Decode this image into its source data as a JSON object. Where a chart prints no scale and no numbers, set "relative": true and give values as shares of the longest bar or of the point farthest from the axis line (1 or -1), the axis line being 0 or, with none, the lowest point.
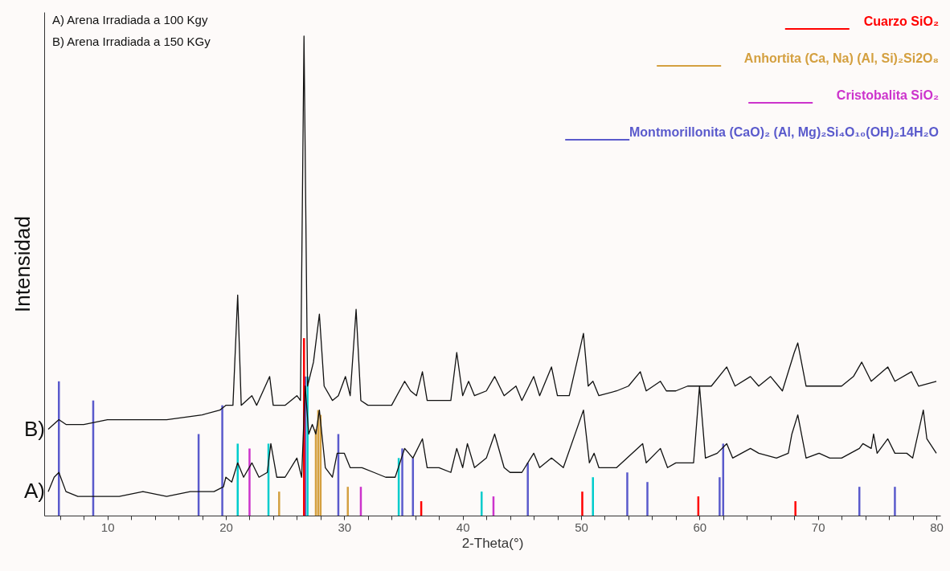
{
  "chart_data": {
    "type": "line",
    "relative": true,
    "xlabel": "2-Theta(°)",
    "ylabel": "Intensidad",
    "xlim": [
      5,
      80
    ],
    "xticks": [
      {
        "value": 6,
        "label": null
      },
      {
        "value": 8,
        "label": null
      },
      10,
      {
        "value": 12,
        "label": null
      },
      {
        "value": 14,
        "label": null
      },
      {
        "value": 16,
        "label": null
      },
      {
        "value": 18,
        "label": null
      },
      20,
      {
        "value": 22,
        "label": null
      },
      {
        "value": 24,
        "label": null
      },
      {
        "value": 26,
        "label": null
      },
      {
        "value": 28,
        "label": null
      },
      30,
      {
        "value": 32,
        "label": null
      },
      {
        "value": 34,
        "label": null
      },
      {
        "value": 36,
        "label": null
      },
      {
        "value": 38,
        "label": null
      },
      40,
      {
        "value": 42,
        "label": null
      },
      {
        "value": 44,
        "label": null
      },
      {
        "value": 46,
        "label": null
      },
      {
        "value": 48,
        "label": null
      },
      50,
      {
        "value": 52,
        "label": null
      },
      {
        "value": 54,
        "label": null
      },
      {
        "value": 56,
        "label": null
      },
      {
        "value": 58,
        "label": null
      },
      60,
      {
        "value": 62,
        "label": null
      },
      {
        "value": 64,
        "label": null
      },
      {
        "value": 66,
        "label": null
      },
      {
        "value": 68,
        "label": null
      },
      70,
      {
        "value": 72,
        "label": null
      },
      {
        "value": 74,
        "label": null
      },
      {
        "value": 76,
        "label": null
      },
      {
        "value": 78,
        "label": null
      },
      80
    ],
    "tick_labels": "x",
    "grid": false,
    "legend": "top right",
    "marker": "none",
    "line_style": "solid",
    "annotations": [
      "A)     Arena Irradiada a 100 Kgy",
      "B)     Arena Irradiada a 150 KGy",
      {
        "text": "B)",
        "x": 5,
        "y": 0.18
      },
      {
        "text": "A)",
        "x": 5,
        "y": 0.05
      }
    ],
    "series": [
      {
        "type": "bar",
        "name": "Montmorillonita (CaO)₂ (Al, Mg)₂Si₄O₁₀(OH)₂14H₂O",
        "color": "#5a5acc",
        "x": [
          5.9,
          8.8,
          17.7,
          19.7,
          26.7,
          29.5,
          34.9,
          35.8,
          45.5,
          53.9,
          55.6,
          61.7,
          62.0,
          73.5,
          76.5
        ],
        "values": [
          0.28,
          0.24,
          0.17,
          0.23,
          0.29,
          0.17,
          0.14,
          0.12,
          0.11,
          0.09,
          0.07,
          0.08,
          0.15,
          0.06,
          0.06
        ]
      },
      {
        "type": "bar",
        "name": "Cuarzo  SiO₂",
        "color": "#ff0000",
        "x": [
          26.6,
          36.5,
          50.1,
          59.9,
          68.1
        ],
        "values": [
          0.37,
          0.03,
          0.05,
          0.04,
          0.03
        ]
      },
      {
        "type": "bar",
        "name": "Anhortita (Ca, Na) (Al, Si)₂Si2O₈",
        "color": "#d4a040",
        "x": [
          24.5,
          27.6,
          27.8,
          28.0,
          30.3
        ],
        "values": [
          0.05,
          0.18,
          0.22,
          0.21,
          0.06
        ]
      },
      {
        "type": "bar",
        "name": "Cristobalita  SiO₂",
        "color": "#cc33cc",
        "x": [
          22.0,
          31.4,
          42.6
        ],
        "values": [
          0.14,
          0.06,
          0.04
        ]
      },
      {
        "type": "bar",
        "color": "#00cccc",
        "x": [
          21.0,
          23.6,
          26.9,
          34.6,
          41.6,
          51.0
        ],
        "values": [
          0.15,
          0.15,
          0.29,
          0.12,
          0.05,
          0.08
        ]
      },
      {
        "color": "#111111",
        "x": [
          5,
          5.9,
          6.5,
          8,
          10,
          13,
          15,
          18,
          19.5,
          20,
          20.6,
          21,
          21.3,
          22.2,
          22.6,
          23.7,
          24,
          25,
          26,
          26.3,
          26.6,
          26.9,
          27.4,
          27.9,
          28.3,
          29,
          29.5,
          30.1,
          30.5,
          31,
          31.4,
          32,
          33,
          34,
          35.1,
          35.6,
          36.1,
          36.6,
          37,
          38,
          39,
          39.5,
          40,
          40.5,
          41,
          42,
          42.7,
          43.5,
          44.5,
          45,
          46,
          46.5,
          47.5,
          48,
          49,
          50.2,
          50.6,
          51,
          51.5,
          53,
          54,
          55,
          55.5,
          56.7,
          57.2,
          58,
          59,
          60,
          61,
          62.3,
          63,
          64.3,
          65,
          66,
          67,
          68,
          68.3,
          69,
          70,
          71,
          72,
          73,
          73.7,
          74.5,
          75.9,
          76.5,
          77.9,
          78.5,
          80
        ],
        "values": [
          0.18,
          0.2,
          0.19,
          0.19,
          0.2,
          0.2,
          0.2,
          0.21,
          0.22,
          0.23,
          0.23,
          0.46,
          0.23,
          0.25,
          0.23,
          0.29,
          0.23,
          0.23,
          0.25,
          0.24,
          1.0,
          0.27,
          0.32,
          0.42,
          0.27,
          0.24,
          0.25,
          0.29,
          0.25,
          0.43,
          0.24,
          0.23,
          0.23,
          0.23,
          0.28,
          0.26,
          0.25,
          0.3,
          0.24,
          0.24,
          0.24,
          0.34,
          0.25,
          0.28,
          0.25,
          0.26,
          0.29,
          0.25,
          0.27,
          0.24,
          0.29,
          0.25,
          0.31,
          0.25,
          0.25,
          0.38,
          0.27,
          0.28,
          0.25,
          0.26,
          0.27,
          0.3,
          0.26,
          0.28,
          0.26,
          0.26,
          0.27,
          0.27,
          0.27,
          0.31,
          0.27,
          0.29,
          0.27,
          0.29,
          0.26,
          0.34,
          0.36,
          0.27,
          0.27,
          0.27,
          0.27,
          0.29,
          0.32,
          0.28,
          0.31,
          0.28,
          0.3,
          0.27,
          0.28
        ]
      },
      {
        "color": "#111111",
        "x": [
          5,
          5.5,
          5.9,
          6.5,
          7.5,
          9,
          11,
          13,
          15,
          17,
          19,
          19.8,
          20,
          20.5,
          21,
          21.5,
          22.2,
          22.8,
          23.5,
          23.8,
          24.3,
          25,
          26,
          26.4,
          26.7,
          27,
          27.3,
          27.6,
          27.9,
          28.4,
          29,
          29.4,
          30,
          30.5,
          31.5,
          32.5,
          33.5,
          34.3,
          35.1,
          35.8,
          36.6,
          37,
          38,
          39,
          39.5,
          40,
          40.4,
          41,
          42,
          42.7,
          43.5,
          44,
          45,
          46,
          46.5,
          47.5,
          48.5,
          50.2,
          50.7,
          51.1,
          51.5,
          53,
          55.2,
          55.5,
          56.7,
          57.3,
          58,
          59.5,
          60,
          60.5,
          61.5,
          62.3,
          62.8,
          64.3,
          65,
          66.5,
          67.5,
          67.8,
          68.3,
          69,
          70.1,
          71,
          72,
          73.5,
          73.8,
          74.5,
          74.7,
          75,
          75.9,
          76.5,
          77.5,
          78,
          78.9,
          79.2,
          80
        ],
        "values": [
          0.05,
          0.08,
          0.09,
          0.05,
          0.04,
          0.04,
          0.04,
          0.05,
          0.04,
          0.05,
          0.05,
          0.06,
          0.08,
          0.07,
          0.11,
          0.08,
          0.11,
          0.08,
          0.09,
          0.15,
          0.08,
          0.08,
          0.12,
          0.08,
          0.27,
          0.17,
          0.19,
          0.17,
          0.22,
          0.1,
          0.08,
          0.13,
          0.13,
          0.1,
          0.1,
          0.09,
          0.08,
          0.08,
          0.14,
          0.12,
          0.16,
          0.1,
          0.1,
          0.09,
          0.14,
          0.1,
          0.15,
          0.1,
          0.12,
          0.17,
          0.1,
          0.09,
          0.09,
          0.13,
          0.1,
          0.12,
          0.1,
          0.22,
          0.11,
          0.13,
          0.1,
          0.1,
          0.15,
          0.11,
          0.14,
          0.1,
          0.11,
          0.11,
          0.27,
          0.12,
          0.13,
          0.15,
          0.12,
          0.14,
          0.13,
          0.12,
          0.13,
          0.17,
          0.21,
          0.12,
          0.13,
          0.12,
          0.12,
          0.14,
          0.15,
          0.14,
          0.17,
          0.13,
          0.16,
          0.13,
          0.13,
          0.12,
          0.22,
          0.16,
          0.13
        ]
      }
    ]
  }
}
